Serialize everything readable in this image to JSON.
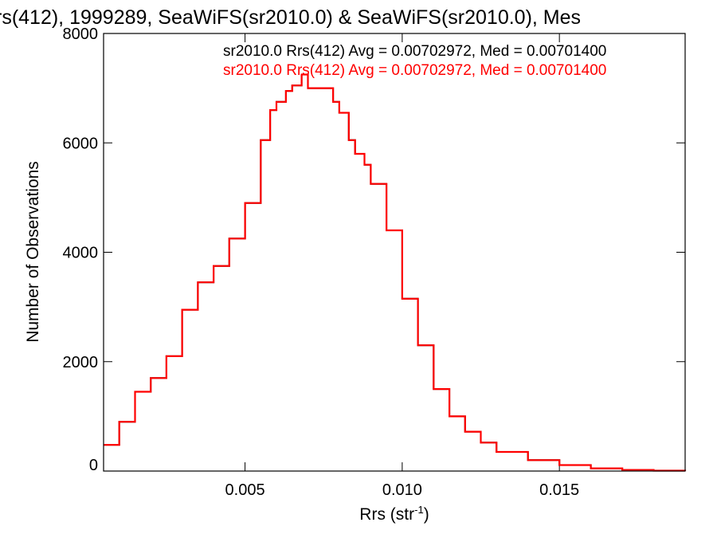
{
  "chart_data": {
    "type": "line",
    "style": "histogram-step",
    "title": "rs(412), 1999289, SeaWiFS(sr2010.0) & SeaWiFS(sr2010.0), Mes",
    "xlabel_main": "Rrs (str",
    "xlabel_sup": "-1",
    "xlabel_close": ")",
    "ylabel": "Number of Observations",
    "xlim": [
      0.0005,
      0.019
    ],
    "ylim": [
      0,
      8000
    ],
    "xticks": [
      0.005,
      0.01,
      0.015
    ],
    "xtick_labels": [
      "0.005",
      "0.010",
      "0.015"
    ],
    "yticks": [
      0,
      2000,
      4000,
      6000,
      8000
    ],
    "ytick_labels": [
      "0",
      "2000",
      "4000",
      "6000",
      "8000"
    ],
    "grid": false,
    "legend_placement": "top-right",
    "series": [
      {
        "name": "sr2010.0 Rrs(412) Avg = 0.00702972, Med = 0.00701400",
        "color": "#000000",
        "x": [
          0.0005,
          0.001,
          0.0015,
          0.002,
          0.0025,
          0.003,
          0.0035,
          0.004,
          0.0045,
          0.005,
          0.0055,
          0.0058,
          0.006,
          0.0063,
          0.0065,
          0.0068,
          0.007,
          0.0072,
          0.0075,
          0.0078,
          0.008,
          0.0083,
          0.0085,
          0.0088,
          0.009,
          0.0095,
          0.01,
          0.0105,
          0.011,
          0.0115,
          0.012,
          0.0125,
          0.013,
          0.014,
          0.015,
          0.016,
          0.017,
          0.018,
          0.019
        ],
        "y": [
          480,
          900,
          1450,
          1700,
          2100,
          2950,
          3450,
          3750,
          4250,
          4900,
          6050,
          6600,
          6750,
          6950,
          7050,
          7250,
          7000,
          7000,
          7000,
          6750,
          6550,
          6050,
          5800,
          5600,
          5250,
          4400,
          3150,
          2300,
          1500,
          1000,
          720,
          520,
          350,
          200,
          110,
          50,
          20,
          8,
          3
        ]
      },
      {
        "name": "sr2010.0 Rrs(412) Avg = 0.00702972, Med = 0.00701400",
        "color": "#ff0000",
        "x": [
          0.0005,
          0.001,
          0.0015,
          0.002,
          0.0025,
          0.003,
          0.0035,
          0.004,
          0.0045,
          0.005,
          0.0055,
          0.0058,
          0.006,
          0.0063,
          0.0065,
          0.0068,
          0.007,
          0.0072,
          0.0075,
          0.0078,
          0.008,
          0.0083,
          0.0085,
          0.0088,
          0.009,
          0.0095,
          0.01,
          0.0105,
          0.011,
          0.0115,
          0.012,
          0.0125,
          0.013,
          0.014,
          0.015,
          0.016,
          0.017,
          0.018,
          0.019
        ],
        "y": [
          480,
          900,
          1450,
          1700,
          2100,
          2950,
          3450,
          3750,
          4250,
          4900,
          6050,
          6600,
          6750,
          6950,
          7050,
          7250,
          7000,
          7000,
          7000,
          6750,
          6550,
          6050,
          5800,
          5600,
          5250,
          4400,
          3150,
          2300,
          1500,
          1000,
          720,
          520,
          350,
          200,
          110,
          50,
          20,
          8,
          3
        ]
      }
    ]
  }
}
